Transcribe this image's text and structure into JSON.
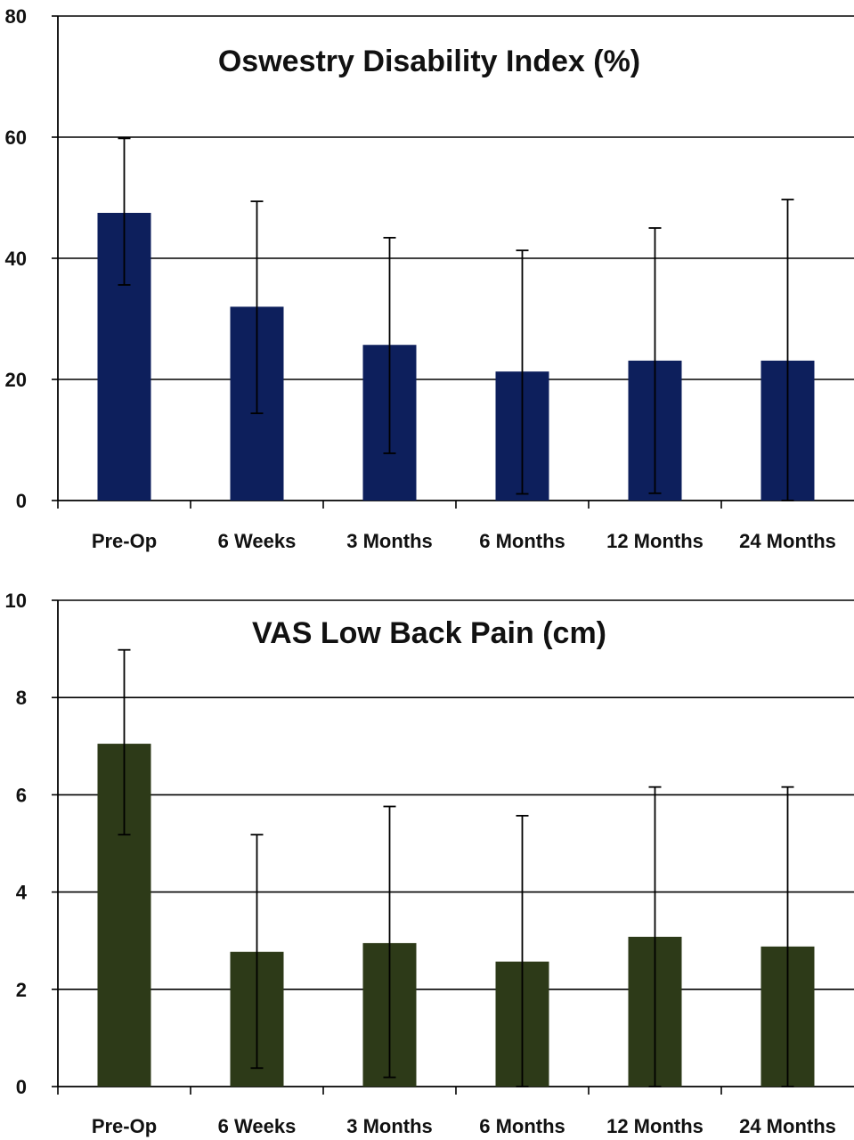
{
  "chart_data": [
    {
      "type": "bar",
      "title": "Oswestry Disability Index (%)",
      "xlabel": "",
      "ylabel": "",
      "ylim": [
        0,
        80
      ],
      "yticks": [
        0,
        20,
        40,
        60,
        80
      ],
      "grid": true,
      "bar_color": "#0d1f5c",
      "categories": [
        "Pre-Op",
        "6 Weeks",
        "3 Months",
        "6 Months",
        "12 Months",
        "24 Months"
      ],
      "values": [
        47.5,
        32.0,
        25.7,
        21.3,
        23.1,
        23.1
      ],
      "error_low": [
        35.6,
        14.4,
        7.8,
        1.1,
        1.2,
        0.0
      ],
      "error_high": [
        59.8,
        49.4,
        43.4,
        41.3,
        45.0,
        49.7
      ]
    },
    {
      "type": "bar",
      "title": "VAS Low Back Pain (cm)",
      "xlabel": "",
      "ylabel": "",
      "ylim": [
        0,
        10
      ],
      "yticks": [
        0,
        2,
        4,
        6,
        8,
        10
      ],
      "grid": true,
      "bar_color": "#2d3a18",
      "categories": [
        "Pre-Op",
        "6 Weeks",
        "3 Months",
        "6 Months",
        "12 Months",
        "24 Months"
      ],
      "values": [
        7.05,
        2.77,
        2.95,
        2.57,
        3.08,
        2.88
      ],
      "error_low": [
        5.18,
        0.38,
        0.19,
        0.0,
        0.0,
        0.0
      ],
      "error_high": [
        8.98,
        5.18,
        5.76,
        5.57,
        6.16,
        6.16
      ]
    }
  ]
}
